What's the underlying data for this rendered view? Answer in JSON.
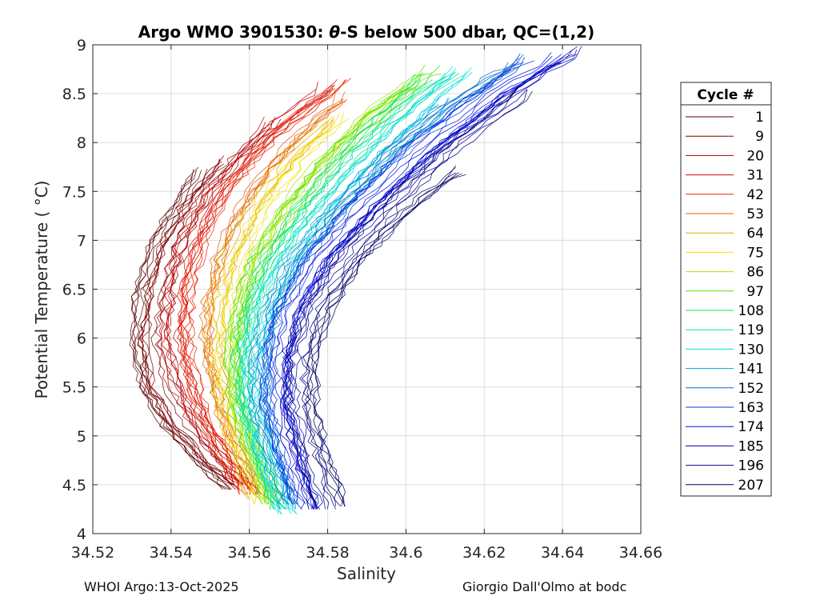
{
  "chart_data": {
    "type": "line",
    "title": "Argo WMO 3901530: θ-S below 500 dbar,  QC=(1,2)",
    "title_prefix": "Argo WMO 3901530: ",
    "title_symbol": "θ",
    "title_suffix": "-S below 500 dbar,  QC=(1,2)",
    "xlabel": "Salinity",
    "ylabel": "Potential Temperature ( °C)",
    "xlim": [
      34.52,
      34.66
    ],
    "ylim": [
      4,
      9
    ],
    "xticks": [
      34.52,
      34.54,
      34.56,
      34.58,
      34.6,
      34.62,
      34.64,
      34.66
    ],
    "xtick_labels": [
      "34.52",
      "34.54",
      "34.56",
      "34.58",
      "34.6",
      "34.62",
      "34.64",
      "34.66"
    ],
    "yticks": [
      4,
      4.5,
      5,
      5.5,
      6,
      6.5,
      7,
      7.5,
      8,
      8.5,
      9
    ],
    "ytick_labels": [
      "4",
      "4.5",
      "5",
      "5.5",
      "6",
      "6.5",
      "7",
      "7.5",
      "8",
      "8.5",
      "9"
    ],
    "grid": true,
    "legend_title": "Cycle #",
    "legend_position": "right",
    "series": [
      {
        "name": "1",
        "color": "#5a0000",
        "points": [
          [
            34.556,
            4.45
          ],
          [
            34.549,
            4.7
          ],
          [
            34.54,
            5.1
          ],
          [
            34.534,
            5.5
          ],
          [
            34.532,
            6.0
          ],
          [
            34.533,
            6.5
          ],
          [
            34.537,
            7.0
          ],
          [
            34.543,
            7.4
          ],
          [
            34.548,
            7.7
          ]
        ]
      },
      {
        "name": "9",
        "color": "#7d0000",
        "points": [
          [
            34.557,
            4.5
          ],
          [
            34.55,
            4.75
          ],
          [
            34.542,
            5.1
          ],
          [
            34.536,
            5.5
          ],
          [
            34.534,
            6.0
          ],
          [
            34.536,
            6.5
          ],
          [
            34.54,
            7.0
          ],
          [
            34.547,
            7.45
          ],
          [
            34.554,
            7.8
          ]
        ]
      },
      {
        "name": "20",
        "color": "#a80000",
        "points": [
          [
            34.558,
            4.5
          ],
          [
            34.552,
            4.8
          ],
          [
            34.545,
            5.2
          ],
          [
            34.54,
            5.6
          ],
          [
            34.538,
            6.0
          ],
          [
            34.539,
            6.5
          ],
          [
            34.542,
            7.0
          ],
          [
            34.549,
            7.5
          ],
          [
            34.558,
            7.9
          ],
          [
            34.566,
            8.2
          ]
        ]
      },
      {
        "name": "31",
        "color": "#cf0000",
        "points": [
          [
            34.559,
            4.45
          ],
          [
            34.553,
            4.8
          ],
          [
            34.547,
            5.2
          ],
          [
            34.543,
            5.6
          ],
          [
            34.541,
            6.0
          ],
          [
            34.542,
            6.5
          ],
          [
            34.545,
            7.0
          ],
          [
            34.552,
            7.5
          ],
          [
            34.561,
            7.95
          ],
          [
            34.572,
            8.35
          ],
          [
            34.58,
            8.55
          ]
        ]
      },
      {
        "name": "42",
        "color": "#ee2200",
        "points": [
          [
            34.56,
            4.4
          ],
          [
            34.554,
            4.8
          ],
          [
            34.548,
            5.25
          ],
          [
            34.545,
            5.7
          ],
          [
            34.544,
            6.1
          ],
          [
            34.545,
            6.6
          ],
          [
            34.549,
            7.1
          ],
          [
            34.556,
            7.6
          ],
          [
            34.566,
            8.05
          ],
          [
            34.577,
            8.4
          ],
          [
            34.584,
            8.6
          ]
        ]
      },
      {
        "name": "53",
        "color": "#e65c00",
        "points": [
          [
            34.561,
            4.4
          ],
          [
            34.556,
            4.8
          ],
          [
            34.551,
            5.3
          ],
          [
            34.548,
            5.8
          ],
          [
            34.548,
            6.3
          ],
          [
            34.551,
            6.8
          ],
          [
            34.556,
            7.3
          ],
          [
            34.565,
            7.8
          ],
          [
            34.575,
            8.2
          ],
          [
            34.583,
            8.45
          ]
        ]
      },
      {
        "name": "64",
        "color": "#e6a800",
        "points": [
          [
            34.562,
            4.35
          ],
          [
            34.557,
            4.8
          ],
          [
            34.553,
            5.3
          ],
          [
            34.551,
            5.8
          ],
          [
            34.551,
            6.3
          ],
          [
            34.554,
            6.8
          ],
          [
            34.56,
            7.3
          ],
          [
            34.569,
            7.8
          ],
          [
            34.579,
            8.2
          ]
        ]
      },
      {
        "name": "75",
        "color": "#f0e000",
        "points": [
          [
            34.563,
            4.3
          ],
          [
            34.558,
            4.8
          ],
          [
            34.554,
            5.3
          ],
          [
            34.553,
            5.8
          ],
          [
            34.554,
            6.3
          ],
          [
            34.557,
            6.8
          ],
          [
            34.563,
            7.3
          ],
          [
            34.572,
            7.8
          ],
          [
            34.583,
            8.25
          ]
        ]
      },
      {
        "name": "86",
        "color": "#a8e600",
        "points": [
          [
            34.565,
            4.3
          ],
          [
            34.56,
            4.8
          ],
          [
            34.556,
            5.3
          ],
          [
            34.555,
            5.8
          ],
          [
            34.556,
            6.3
          ],
          [
            34.56,
            6.8
          ],
          [
            34.567,
            7.3
          ],
          [
            34.577,
            7.8
          ],
          [
            34.589,
            8.3
          ],
          [
            34.6,
            8.6
          ]
        ]
      },
      {
        "name": "97",
        "color": "#5ae600",
        "points": [
          [
            34.566,
            4.3
          ],
          [
            34.561,
            4.8
          ],
          [
            34.557,
            5.3
          ],
          [
            34.556,
            5.8
          ],
          [
            34.558,
            6.3
          ],
          [
            34.562,
            6.8
          ],
          [
            34.57,
            7.3
          ],
          [
            34.581,
            7.85
          ],
          [
            34.594,
            8.35
          ],
          [
            34.607,
            8.75
          ]
        ]
      },
      {
        "name": "108",
        "color": "#14e650",
        "points": [
          [
            34.567,
            4.25
          ],
          [
            34.562,
            4.8
          ],
          [
            34.558,
            5.3
          ],
          [
            34.557,
            5.8
          ],
          [
            34.559,
            6.3
          ],
          [
            34.564,
            6.8
          ],
          [
            34.572,
            7.3
          ],
          [
            34.584,
            7.9
          ],
          [
            34.597,
            8.4
          ],
          [
            34.604,
            8.65
          ]
        ]
      },
      {
        "name": "119",
        "color": "#00e6a0",
        "points": [
          [
            34.568,
            4.25
          ],
          [
            34.563,
            4.8
          ],
          [
            34.559,
            5.3
          ],
          [
            34.559,
            5.8
          ],
          [
            34.561,
            6.3
          ],
          [
            34.566,
            6.8
          ],
          [
            34.575,
            7.3
          ],
          [
            34.588,
            7.9
          ],
          [
            34.601,
            8.4
          ],
          [
            34.612,
            8.7
          ]
        ]
      },
      {
        "name": "130",
        "color": "#00dce6",
        "points": [
          [
            34.569,
            4.2
          ],
          [
            34.564,
            4.8
          ],
          [
            34.56,
            5.3
          ],
          [
            34.56,
            5.8
          ],
          [
            34.563,
            6.3
          ],
          [
            34.569,
            6.8
          ],
          [
            34.578,
            7.3
          ],
          [
            34.592,
            7.9
          ],
          [
            34.606,
            8.45
          ],
          [
            34.614,
            8.72
          ]
        ]
      },
      {
        "name": "141",
        "color": "#00a8d8",
        "points": [
          [
            34.57,
            4.25
          ],
          [
            34.565,
            4.8
          ],
          [
            34.562,
            5.3
          ],
          [
            34.562,
            5.8
          ],
          [
            34.565,
            6.3
          ],
          [
            34.571,
            6.8
          ],
          [
            34.581,
            7.3
          ],
          [
            34.595,
            7.9
          ],
          [
            34.61,
            8.4
          ]
        ]
      },
      {
        "name": "152",
        "color": "#0070d0",
        "points": [
          [
            34.571,
            4.3
          ],
          [
            34.567,
            4.8
          ],
          [
            34.564,
            5.3
          ],
          [
            34.564,
            5.8
          ],
          [
            34.567,
            6.3
          ],
          [
            34.573,
            6.8
          ],
          [
            34.584,
            7.35
          ],
          [
            34.598,
            7.95
          ],
          [
            34.614,
            8.45
          ],
          [
            34.628,
            8.8
          ]
        ]
      },
      {
        "name": "163",
        "color": "#0038e0",
        "points": [
          [
            34.573,
            4.3
          ],
          [
            34.569,
            4.8
          ],
          [
            34.566,
            5.3
          ],
          [
            34.566,
            5.8
          ],
          [
            34.569,
            6.3
          ],
          [
            34.576,
            6.8
          ],
          [
            34.587,
            7.35
          ],
          [
            34.602,
            7.95
          ],
          [
            34.618,
            8.45
          ],
          [
            34.632,
            8.85
          ]
        ]
      },
      {
        "name": "174",
        "color": "#0010e6",
        "points": [
          [
            34.575,
            4.25
          ],
          [
            34.571,
            4.8
          ],
          [
            34.568,
            5.3
          ],
          [
            34.568,
            5.8
          ],
          [
            34.571,
            6.3
          ],
          [
            34.578,
            6.8
          ],
          [
            34.59,
            7.35
          ],
          [
            34.606,
            7.95
          ],
          [
            34.623,
            8.5
          ],
          [
            34.638,
            8.85
          ]
        ]
      },
      {
        "name": "185",
        "color": "#0000b8",
        "points": [
          [
            34.577,
            4.25
          ],
          [
            34.573,
            4.8
          ],
          [
            34.57,
            5.3
          ],
          [
            34.57,
            5.8
          ],
          [
            34.574,
            6.3
          ],
          [
            34.581,
            6.8
          ],
          [
            34.593,
            7.35
          ],
          [
            34.609,
            7.95
          ],
          [
            34.627,
            8.5
          ],
          [
            34.644,
            8.93
          ]
        ]
      },
      {
        "name": "196",
        "color": "#00008c",
        "points": [
          [
            34.579,
            4.25
          ],
          [
            34.575,
            4.8
          ],
          [
            34.572,
            5.3
          ],
          [
            34.572,
            5.8
          ],
          [
            34.576,
            6.3
          ],
          [
            34.584,
            6.8
          ],
          [
            34.596,
            7.35
          ],
          [
            34.612,
            7.95
          ],
          [
            34.63,
            8.5
          ]
        ]
      },
      {
        "name": "207",
        "color": "#000066",
        "points": [
          [
            34.583,
            4.28
          ],
          [
            34.578,
            4.8
          ],
          [
            34.575,
            5.3
          ],
          [
            34.575,
            5.8
          ],
          [
            34.579,
            6.3
          ],
          [
            34.587,
            6.8
          ],
          [
            34.599,
            7.3
          ],
          [
            34.612,
            7.7
          ]
        ]
      }
    ]
  },
  "footer": {
    "left": "WHOI Argo:13-Oct-2025",
    "right": "Giorgio Dall'Olmo at bodc"
  }
}
